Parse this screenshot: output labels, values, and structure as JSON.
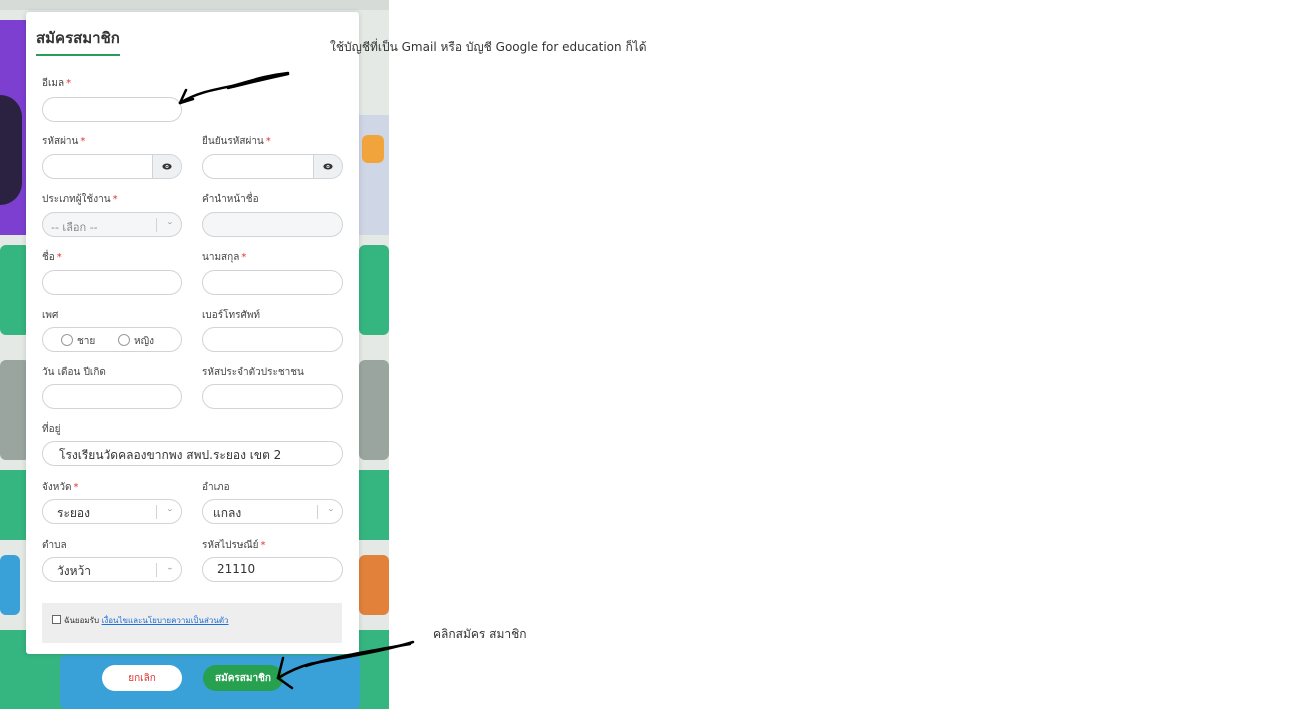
{
  "modal": {
    "title": "สมัครสมาชิก",
    "email": {
      "label": "อีเมล",
      "required": "*",
      "value": ""
    },
    "password": {
      "label": "รหัสผ่าน",
      "required": "*",
      "value": ""
    },
    "confirm_password": {
      "label": "ยืนยันรหัสผ่าน",
      "required": "*",
      "value": ""
    },
    "user_type": {
      "label": "ประเภทผู้ใช้งาน",
      "required": "*",
      "placeholder": "-- เลือก --"
    },
    "prefix": {
      "label": "คำนำหน้าชื่อ",
      "value": ""
    },
    "first_name": {
      "label": "ชื่อ",
      "required": "*",
      "value": ""
    },
    "last_name": {
      "label": "นามสกุล",
      "required": "*",
      "value": ""
    },
    "gender": {
      "label": "เพศ",
      "options": [
        "ชาย",
        "หญิง"
      ]
    },
    "phone": {
      "label": "เบอร์โทรศัพท์",
      "value": ""
    },
    "birthdate": {
      "label": "วัน เดือน ปีเกิด",
      "value": ""
    },
    "citizen_id": {
      "label": "รหัสประจำตัวประชาชน",
      "value": ""
    },
    "address": {
      "label": "ที่อยู่",
      "value": "โรงเรียนวัดคลองขากพง สพป.ระยอง เขต 2"
    },
    "province": {
      "label": "จังหวัด",
      "required": "*",
      "value": "ระยอง"
    },
    "district": {
      "label": "อำเภอ",
      "value": "แกลง"
    },
    "subdistrict": {
      "label": "ตำบล",
      "value": "วังหว้า"
    },
    "postal_code": {
      "label": "รหัสไปรษณีย์",
      "required": "*",
      "value": "21110"
    },
    "consent": {
      "prefix": "ฉันยอมรับ",
      "link": "เงื่อนไขและนโยบายความเป็นส่วนตัว"
    },
    "cancel_label": "ยกเลิก",
    "submit_label": "สมัครสมาชิก"
  },
  "annotations": {
    "email_note": "ใช้บัญชีที่เป็น Gmail หรือ บัญชี Google for education ก็ได้",
    "submit_note": "คลิกสมัคร สมาชิก"
  },
  "icons": {
    "eye": "eye-icon",
    "chevron": "chevron-down-icon"
  },
  "colors": {
    "accent": "#27a04f",
    "required": "#e03333",
    "link": "#1e6fd6"
  }
}
